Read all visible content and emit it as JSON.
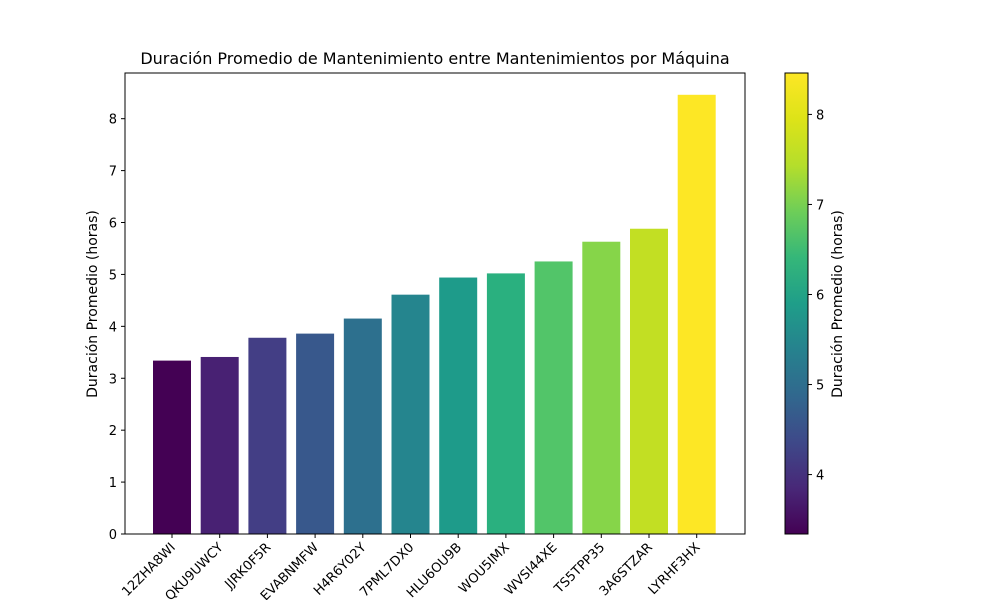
{
  "chart_data": {
    "type": "bar",
    "title": "Duración Promedio de Mantenimiento entre Mantenimientos por Máquina",
    "xlabel": "",
    "ylabel": "Duración Promedio (horas)",
    "ylim": [
      0,
      8.88
    ],
    "yticks": [
      "0",
      "1",
      "2",
      "3",
      "4",
      "5",
      "6",
      "7",
      "8"
    ],
    "categories": [
      "12ZHA8WI",
      "QKU9UWCY",
      "JJRK0F5R",
      "EVABNMFW",
      "H4R6Y02Y",
      "7PML7DX0",
      "HLU6OU9B",
      "WOU5IMX",
      "WVSI44XE",
      "TS5TPP35",
      "3A6STZAR",
      "LYRHF3HX"
    ],
    "values": [
      3.34,
      3.41,
      3.78,
      3.86,
      4.15,
      4.61,
      4.94,
      5.02,
      5.25,
      5.63,
      5.88,
      8.46
    ],
    "colors": [
      "#440154",
      "#482173",
      "#433e85",
      "#38588c",
      "#2d708e",
      "#25858e",
      "#1e9b8a",
      "#2ab07f",
      "#52c569",
      "#86d549",
      "#c2df23",
      "#fde725"
    ],
    "grid": false,
    "legend": "none",
    "colorbar": {
      "label": "Duración Promedio (horas)",
      "range": [
        3.34,
        8.46
      ],
      "ticks": [
        "4",
        "5",
        "6",
        "7",
        "8"
      ],
      "colormap": "viridis"
    }
  }
}
